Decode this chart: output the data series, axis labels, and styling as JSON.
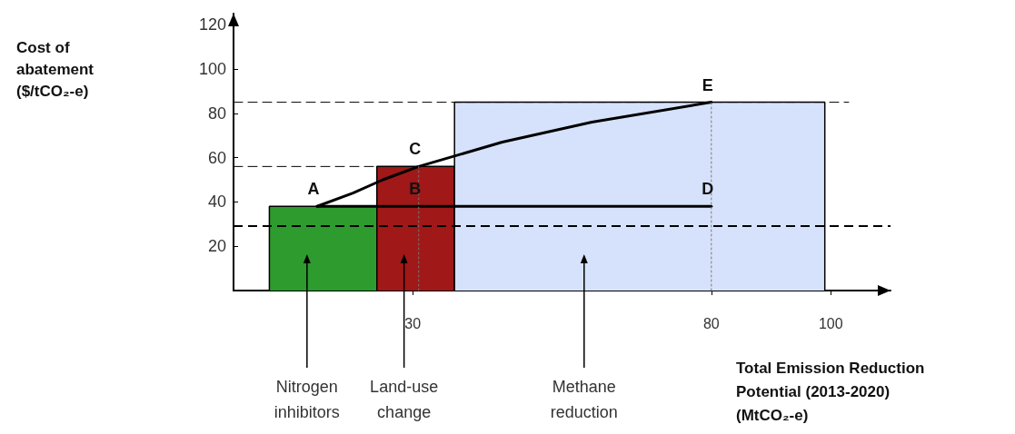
{
  "chart_data": {
    "type": "area",
    "xlabel": "Total Emission Reduction\nPotential (2013-2020)\n(MtCO₂-e)",
    "xlim": [
      0,
      110
    ],
    "xticks": [
      30,
      80,
      100
    ],
    "ylim": [
      0,
      125
    ],
    "yticks": [
      20,
      40,
      60,
      80,
      100,
      120
    ],
    "grid": false,
    "series": [
      {
        "color": "#2e9b2e",
        "x": [
          6,
          6,
          24,
          24
        ],
        "values": [
          0,
          38,
          38,
          0
        ]
      },
      {
        "color": "#a01818",
        "x": [
          24,
          24,
          37,
          37
        ],
        "values": [
          0,
          56,
          56,
          0
        ]
      },
      {
        "color": "#d6e2fb",
        "x": [
          37,
          37,
          99,
          99
        ],
        "values": [
          0,
          85,
          85,
          0
        ]
      },
      {
        "type": "line",
        "color": "#000000",
        "x": [
          14,
          20,
          25,
          31,
          45,
          60,
          80
        ],
        "values": [
          38,
          44,
          50,
          56,
          67,
          76,
          85
        ]
      },
      {
        "type": "line",
        "color": "#000000",
        "x": [
          14,
          80
        ],
        "values": [
          38,
          38
        ]
      },
      {
        "type": "line",
        "color": "#777777",
        "line_style": "dotted",
        "x": [
          80,
          80
        ],
        "values": [
          0,
          85
        ]
      },
      {
        "type": "line",
        "color": "#777777",
        "line_style": "dotted",
        "x": [
          31,
          31
        ],
        "values": [
          0,
          56
        ]
      },
      {
        "type": "line",
        "color": "#000000",
        "line_style": "dashed",
        "x": [
          0,
          103
        ],
        "values": [
          85,
          85
        ]
      },
      {
        "type": "line",
        "color": "#000000",
        "line_style": "dashed",
        "x": [
          0,
          24
        ],
        "values": [
          56,
          56
        ]
      }
    ],
    "ref_lines": [
      {
        "axis": "y",
        "value": 29,
        "line_style": "dashed",
        "color": "#000000"
      }
    ],
    "annotations": [
      {
        "text": "A",
        "x": 14,
        "y": 38
      },
      {
        "text": "B",
        "x": 31,
        "y": 38
      },
      {
        "text": "C",
        "x": 31,
        "y": 56
      },
      {
        "text": "D",
        "x": 80,
        "y": 38
      },
      {
        "text": "E",
        "x": 80,
        "y": 85
      },
      "Cost of\nabatement\n($/tCO₂-e)",
      "Nitrogen\ninhibitors",
      "Land-use\nchange",
      "Methane\nreduction"
    ]
  }
}
